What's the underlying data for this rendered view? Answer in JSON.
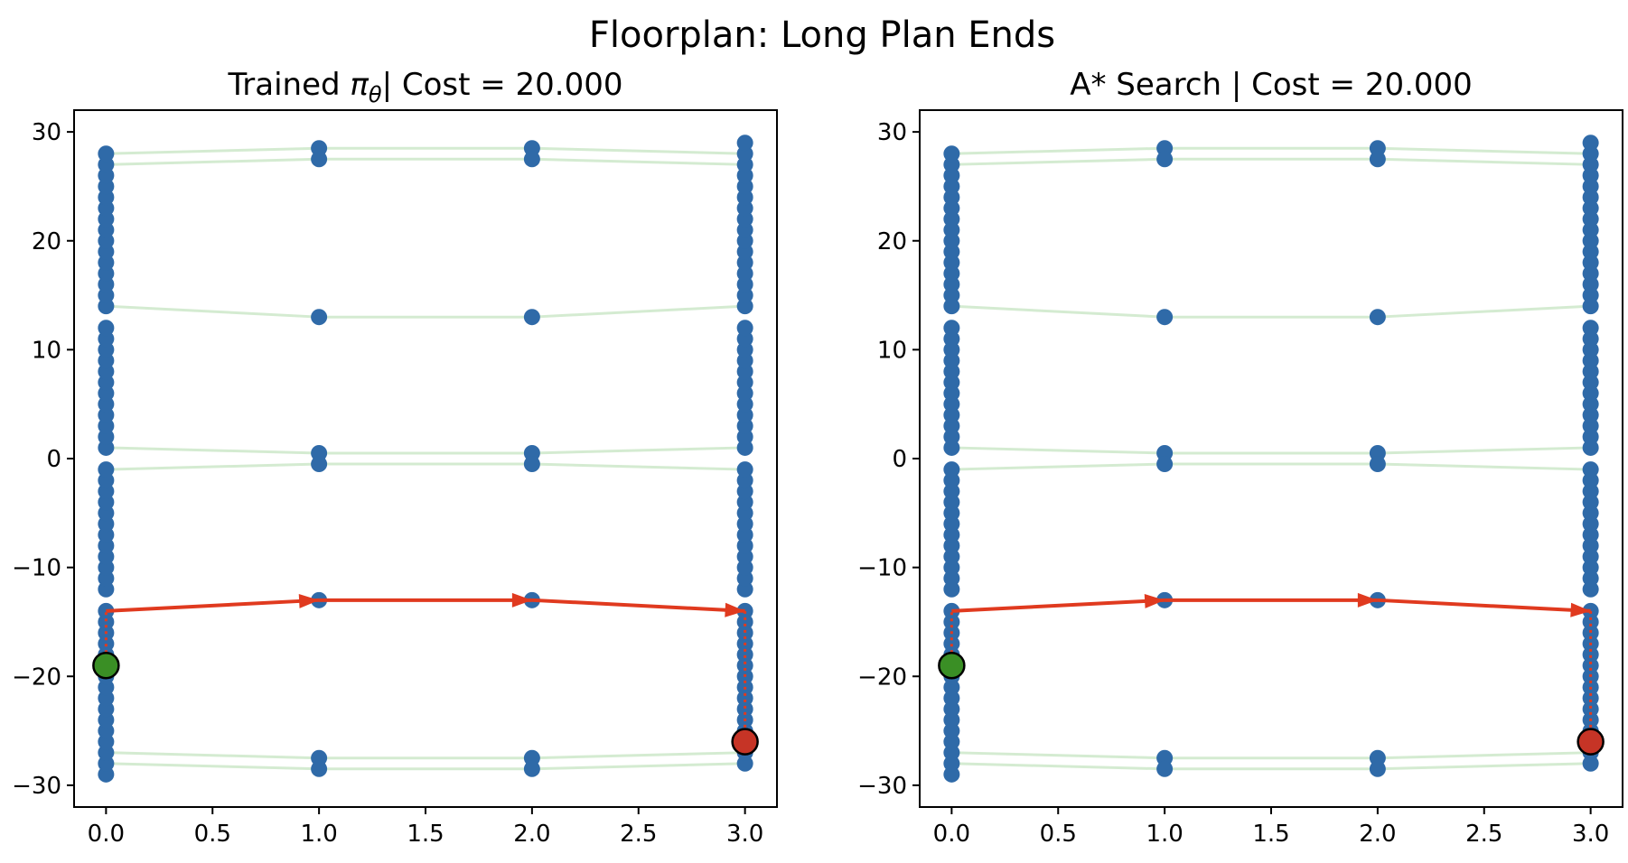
{
  "figure": {
    "suptitle": "Floorplan: Long Plan Ends"
  },
  "colors": {
    "node": "#2f6aa8",
    "edge": "#c9e6c6",
    "path": "#e03a1f",
    "start": "#3a8f25",
    "goal": "#c63426"
  },
  "chart_data": [
    {
      "type": "scatter",
      "title_prefix": "Trained ",
      "title_symbol": "π",
      "title_subscript": "θ",
      "title_suffix": "| Cost = 20.000",
      "xlim": [
        -0.15,
        3.15
      ],
      "ylim": [
        -32,
        32
      ],
      "xticks": [
        0.0,
        0.5,
        1.0,
        1.5,
        2.0,
        2.5,
        3.0
      ],
      "xtick_labels": [
        "0.0",
        "0.5",
        "1.0",
        "1.5",
        "2.0",
        "2.5",
        "3.0"
      ],
      "yticks": [
        30,
        20,
        10,
        0,
        -10,
        -20,
        -30
      ],
      "ytick_labels": [
        "30",
        "20",
        "10",
        "0",
        "−10",
        "−20",
        "−30"
      ],
      "node_columns": [
        {
          "x": 0,
          "y_ranges": [
            [
              14,
              28
            ],
            [
              1,
              12
            ],
            [
              -12,
              -1
            ],
            [
              -29,
              -14
            ]
          ]
        },
        {
          "x": 1,
          "y_values": [
            28.5,
            27.5,
            13,
            0.5,
            -0.5,
            -13,
            -27.5,
            -28.5
          ]
        },
        {
          "x": 2,
          "y_values": [
            28.5,
            27.5,
            13,
            0.5,
            -0.5,
            -13,
            -27.5,
            -28.5
          ]
        },
        {
          "x": 3,
          "y_ranges": [
            [
              14,
              29
            ],
            [
              1,
              12
            ],
            [
              -12,
              -1
            ],
            [
              -28,
              -14
            ]
          ]
        }
      ],
      "edges": [
        [
          [
            0,
            28
          ],
          [
            1,
            28.5
          ]
        ],
        [
          [
            1,
            28.5
          ],
          [
            2,
            28.5
          ]
        ],
        [
          [
            2,
            28.5
          ],
          [
            3,
            28
          ]
        ],
        [
          [
            0,
            27
          ],
          [
            1,
            27.5
          ]
        ],
        [
          [
            1,
            27.5
          ],
          [
            2,
            27.5
          ]
        ],
        [
          [
            2,
            27.5
          ],
          [
            3,
            27
          ]
        ],
        [
          [
            0,
            14
          ],
          [
            1,
            13
          ]
        ],
        [
          [
            1,
            13
          ],
          [
            2,
            13
          ]
        ],
        [
          [
            2,
            13
          ],
          [
            3,
            14
          ]
        ],
        [
          [
            0,
            1
          ],
          [
            1,
            0.5
          ]
        ],
        [
          [
            1,
            0.5
          ],
          [
            2,
            0.5
          ]
        ],
        [
          [
            2,
            0.5
          ],
          [
            3,
            1
          ]
        ],
        [
          [
            0,
            -1
          ],
          [
            1,
            -0.5
          ]
        ],
        [
          [
            1,
            -0.5
          ],
          [
            2,
            -0.5
          ]
        ],
        [
          [
            2,
            -0.5
          ],
          [
            3,
            -1
          ]
        ],
        [
          [
            0,
            -27
          ],
          [
            1,
            -27.5
          ]
        ],
        [
          [
            1,
            -27.5
          ],
          [
            2,
            -27.5
          ]
        ],
        [
          [
            2,
            -27.5
          ],
          [
            3,
            -27
          ]
        ],
        [
          [
            0,
            -28
          ],
          [
            1,
            -28.5
          ]
        ],
        [
          [
            1,
            -28.5
          ],
          [
            2,
            -28.5
          ]
        ],
        [
          [
            2,
            -28.5
          ],
          [
            3,
            -28
          ]
        ]
      ],
      "path": [
        [
          0,
          -19
        ],
        [
          0,
          -14
        ],
        [
          1,
          -13
        ],
        [
          2,
          -13
        ],
        [
          3,
          -14
        ],
        [
          3,
          -26
        ]
      ],
      "start": [
        0,
        -19
      ],
      "goal": [
        3,
        -26
      ]
    },
    {
      "type": "scatter",
      "title": "A* Search | Cost = 20.000",
      "xlim": [
        -0.15,
        3.15
      ],
      "ylim": [
        -32,
        32
      ],
      "xticks": [
        0.0,
        0.5,
        1.0,
        1.5,
        2.0,
        2.5,
        3.0
      ],
      "xtick_labels": [
        "0.0",
        "0.5",
        "1.0",
        "1.5",
        "2.0",
        "2.5",
        "3.0"
      ],
      "yticks": [
        30,
        20,
        10,
        0,
        -10,
        -20,
        -30
      ],
      "ytick_labels": [
        "30",
        "20",
        "10",
        "0",
        "−10",
        "−20",
        "−30"
      ],
      "node_columns": [
        {
          "x": 0,
          "y_ranges": [
            [
              14,
              28
            ],
            [
              1,
              12
            ],
            [
              -12,
              -1
            ],
            [
              -29,
              -14
            ]
          ]
        },
        {
          "x": 1,
          "y_values": [
            28.5,
            27.5,
            13,
            0.5,
            -0.5,
            -13,
            -27.5,
            -28.5
          ]
        },
        {
          "x": 2,
          "y_values": [
            28.5,
            27.5,
            13,
            0.5,
            -0.5,
            -13,
            -27.5,
            -28.5
          ]
        },
        {
          "x": 3,
          "y_ranges": [
            [
              14,
              29
            ],
            [
              1,
              12
            ],
            [
              -12,
              -1
            ],
            [
              -28,
              -14
            ]
          ]
        }
      ],
      "edges": [
        [
          [
            0,
            28
          ],
          [
            1,
            28.5
          ]
        ],
        [
          [
            1,
            28.5
          ],
          [
            2,
            28.5
          ]
        ],
        [
          [
            2,
            28.5
          ],
          [
            3,
            28
          ]
        ],
        [
          [
            0,
            27
          ],
          [
            1,
            27.5
          ]
        ],
        [
          [
            1,
            27.5
          ],
          [
            2,
            27.5
          ]
        ],
        [
          [
            2,
            27.5
          ],
          [
            3,
            27
          ]
        ],
        [
          [
            0,
            14
          ],
          [
            1,
            13
          ]
        ],
        [
          [
            1,
            13
          ],
          [
            2,
            13
          ]
        ],
        [
          [
            2,
            13
          ],
          [
            3,
            14
          ]
        ],
        [
          [
            0,
            1
          ],
          [
            1,
            0.5
          ]
        ],
        [
          [
            1,
            0.5
          ],
          [
            2,
            0.5
          ]
        ],
        [
          [
            2,
            0.5
          ],
          [
            3,
            1
          ]
        ],
        [
          [
            0,
            -1
          ],
          [
            1,
            -0.5
          ]
        ],
        [
          [
            1,
            -0.5
          ],
          [
            2,
            -0.5
          ]
        ],
        [
          [
            2,
            -0.5
          ],
          [
            3,
            -1
          ]
        ],
        [
          [
            0,
            -27
          ],
          [
            1,
            -27.5
          ]
        ],
        [
          [
            1,
            -27.5
          ],
          [
            2,
            -27.5
          ]
        ],
        [
          [
            2,
            -27.5
          ],
          [
            3,
            -27
          ]
        ],
        [
          [
            0,
            -28
          ],
          [
            1,
            -28.5
          ]
        ],
        [
          [
            1,
            -28.5
          ],
          [
            2,
            -28.5
          ]
        ],
        [
          [
            2,
            -28.5
          ],
          [
            3,
            -28
          ]
        ]
      ],
      "path": [
        [
          0,
          -19
        ],
        [
          0,
          -14
        ],
        [
          1,
          -13
        ],
        [
          2,
          -13
        ],
        [
          3,
          -14
        ],
        [
          3,
          -26
        ]
      ],
      "start": [
        0,
        -19
      ],
      "goal": [
        3,
        -26
      ]
    }
  ]
}
